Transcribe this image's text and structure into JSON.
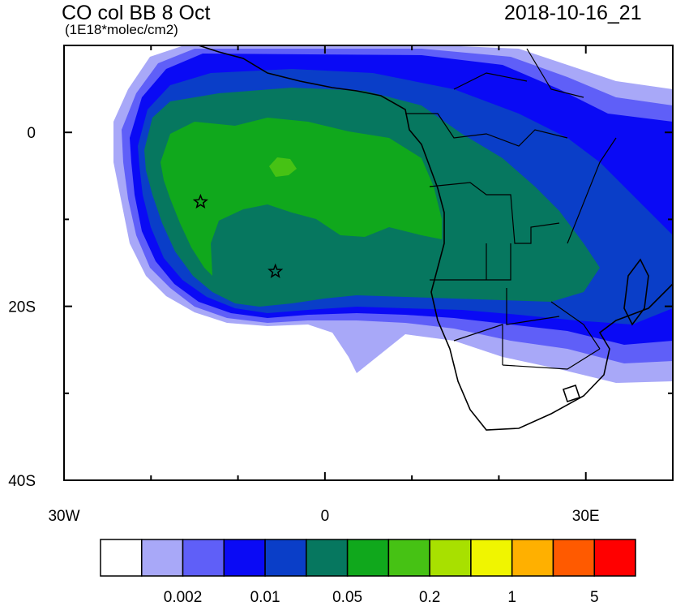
{
  "header": {
    "title": "CO col BB 8 Oct",
    "units": "(1E18*molec/cm2)",
    "datetime": "2018-10-16_21"
  },
  "map": {
    "lon_range": [
      -30,
      40
    ],
    "lat_range": [
      -40,
      10
    ],
    "y_ticks": [
      {
        "lat": 0,
        "label": "0"
      },
      {
        "lat": -20,
        "label": "20S"
      },
      {
        "lat": -40,
        "label": "40S"
      }
    ],
    "x_ticks": [
      {
        "lon": -30,
        "label": "30W"
      },
      {
        "lon": 0,
        "label": "0"
      },
      {
        "lon": 30,
        "label": "30E"
      }
    ],
    "markers": [
      {
        "name": "star",
        "lon": -14.3,
        "lat": -8
      },
      {
        "name": "star",
        "lon": -5.7,
        "lat": -16
      }
    ]
  },
  "colorbar": {
    "colors": [
      "#ffffff",
      "#a8a8f8",
      "#5f5ff8",
      "#0a0af5",
      "#0a3ec8",
      "#06775f",
      "#10a81c",
      "#46c214",
      "#a8e000",
      "#f0f500",
      "#ffb000",
      "#ff5a00",
      "#ff0000"
    ],
    "labels": [
      {
        "after_box": 2,
        "text": "0.002"
      },
      {
        "after_box": 4,
        "text": "0.01"
      },
      {
        "after_box": 6,
        "text": "0.05"
      },
      {
        "after_box": 8,
        "text": "0.2"
      },
      {
        "after_box": 10,
        "text": "1"
      },
      {
        "after_box": 12,
        "text": "5"
      }
    ]
  }
}
